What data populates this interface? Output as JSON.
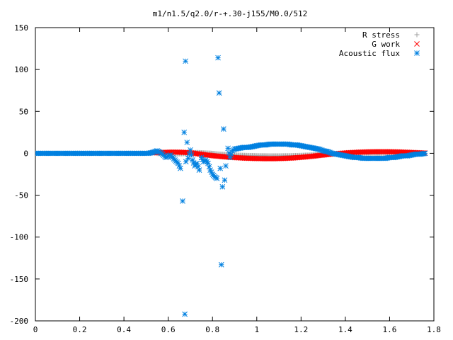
{
  "chart_data": {
    "type": "scatter",
    "title": "m1/n1.5/q2.0/r-+.30-j155/M0.0/512",
    "xlabel": "",
    "ylabel": "",
    "xlim": [
      0,
      1.8
    ],
    "ylim": [
      -200,
      150
    ],
    "xticks": [
      "0",
      "0.2",
      "0.4",
      "0.6",
      "0.8",
      "1",
      "1.2",
      "1.4",
      "1.6",
      "1.8"
    ],
    "yticks": [
      "150",
      "100",
      "50",
      "0",
      "-50",
      "-100",
      "-150",
      "-200"
    ],
    "legend_position": "top-right",
    "grid": false,
    "series": [
      {
        "name": "R stress",
        "marker": "plus",
        "color": "#a0a0a0",
        "x": [
          0.55,
          0.58,
          0.61,
          0.64,
          0.67,
          0.7,
          0.73,
          0.76,
          0.79,
          0.82,
          0.85,
          0.88,
          0.91,
          0.94,
          0.97,
          1.0,
          1.03,
          1.06,
          1.09,
          1.12,
          1.15,
          1.18,
          1.21,
          1.24,
          1.27,
          1.3,
          1.33,
          1.36,
          1.39,
          1.42,
          1.45,
          1.48,
          1.51,
          1.54,
          1.57,
          1.6,
          1.63,
          1.66,
          1.69,
          1.72,
          1.75
        ],
        "y": [
          -0.3,
          -0.6,
          -0.9,
          -0.8,
          -0.5,
          0.5,
          1.0,
          0.6,
          0.2,
          -0.6,
          -1.3,
          -1.8,
          -2.1,
          -2.4,
          -2.6,
          -2.8,
          -2.9,
          -3.0,
          -3.0,
          -2.9,
          -2.8,
          -2.6,
          -2.3,
          -2.0,
          -1.7,
          -1.3,
          -0.9,
          -0.5,
          -0.2,
          0.0,
          0.1,
          0.1,
          0.1,
          0.1,
          0.1,
          0.1,
          0.1,
          0.1,
          0.0,
          0.0,
          0.0
        ]
      },
      {
        "name": "G work",
        "marker": "cross",
        "color": "#ff0000",
        "x": [
          0.53,
          0.56,
          0.59,
          0.62,
          0.65,
          0.68,
          0.71,
          0.74,
          0.77,
          0.8,
          0.83,
          0.86,
          0.89,
          0.92,
          0.95,
          0.98,
          1.01,
          1.04,
          1.07,
          1.1,
          1.13,
          1.16,
          1.19,
          1.22,
          1.25,
          1.28,
          1.31,
          1.34,
          1.37,
          1.4,
          1.43,
          1.46,
          1.49,
          1.52,
          1.55,
          1.58,
          1.61,
          1.64,
          1.67,
          1.7,
          1.73,
          1.76
        ],
        "y": [
          0.5,
          0.9,
          1.2,
          1.4,
          1.3,
          1.0,
          0.3,
          -0.8,
          -1.9,
          -2.8,
          -3.6,
          -4.3,
          -4.9,
          -5.4,
          -5.8,
          -6.1,
          -6.3,
          -6.4,
          -6.4,
          -6.3,
          -6.0,
          -5.6,
          -5.0,
          -4.3,
          -3.5,
          -2.6,
          -1.7,
          -0.9,
          -0.2,
          0.4,
          0.9,
          1.3,
          1.6,
          1.8,
          1.9,
          1.9,
          1.8,
          1.6,
          1.3,
          1.0,
          0.6,
          0.3
        ]
      },
      {
        "name": "Acoustic flux",
        "marker": "star",
        "color": "#0080e0",
        "x": [
          0.0,
          0.03,
          0.06,
          0.09,
          0.12,
          0.15,
          0.18,
          0.21,
          0.24,
          0.27,
          0.3,
          0.33,
          0.36,
          0.39,
          0.42,
          0.45,
          0.48,
          0.51,
          0.53,
          0.55,
          0.57,
          0.59,
          0.61,
          0.63,
          0.645,
          0.655,
          0.665,
          0.672,
          0.675,
          0.678,
          0.68,
          0.685,
          0.69,
          0.7,
          0.71,
          0.72,
          0.73,
          0.74,
          0.75,
          0.76,
          0.77,
          0.78,
          0.79,
          0.8,
          0.81,
          0.82,
          0.825,
          0.83,
          0.835,
          0.84,
          0.845,
          0.85,
          0.855,
          0.86,
          0.87,
          0.88,
          0.89,
          0.9,
          0.92,
          0.94,
          0.96,
          0.98,
          1.0,
          1.02,
          1.04,
          1.06,
          1.08,
          1.1,
          1.12,
          1.14,
          1.16,
          1.18,
          1.2,
          1.22,
          1.24,
          1.26,
          1.28,
          1.3,
          1.32,
          1.34,
          1.36,
          1.38,
          1.4,
          1.42,
          1.44,
          1.46,
          1.48,
          1.5,
          1.52,
          1.54,
          1.56,
          1.58,
          1.6,
          1.62,
          1.64,
          1.66,
          1.68,
          1.7,
          1.72,
          1.74,
          1.76
        ],
        "y": [
          0,
          0,
          0,
          0,
          0,
          0,
          0,
          0,
          0,
          0,
          0,
          0,
          0,
          0,
          0,
          0,
          0,
          0,
          1,
          3,
          0,
          -5,
          -2,
          -8,
          -12,
          -18,
          -57,
          25,
          -192,
          110,
          -10,
          13,
          -6,
          4,
          -8,
          -15,
          -12,
          -20,
          -5,
          -10,
          -8,
          -12,
          -20,
          -25,
          -28,
          -30,
          114,
          72,
          -18,
          -133,
          -40,
          29,
          -32,
          -15,
          6,
          -5,
          3,
          5,
          6,
          7,
          7,
          8,
          9,
          10,
          10,
          11,
          11,
          11,
          11,
          11,
          10,
          10,
          9,
          8,
          7,
          6,
          5,
          3,
          2,
          0,
          -1,
          -2,
          -3,
          -4,
          -5,
          -5,
          -6,
          -6,
          -6,
          -6,
          -6,
          -6,
          -5,
          -5,
          -4,
          -3,
          -3,
          -2,
          -1,
          -1,
          0
        ]
      }
    ]
  }
}
